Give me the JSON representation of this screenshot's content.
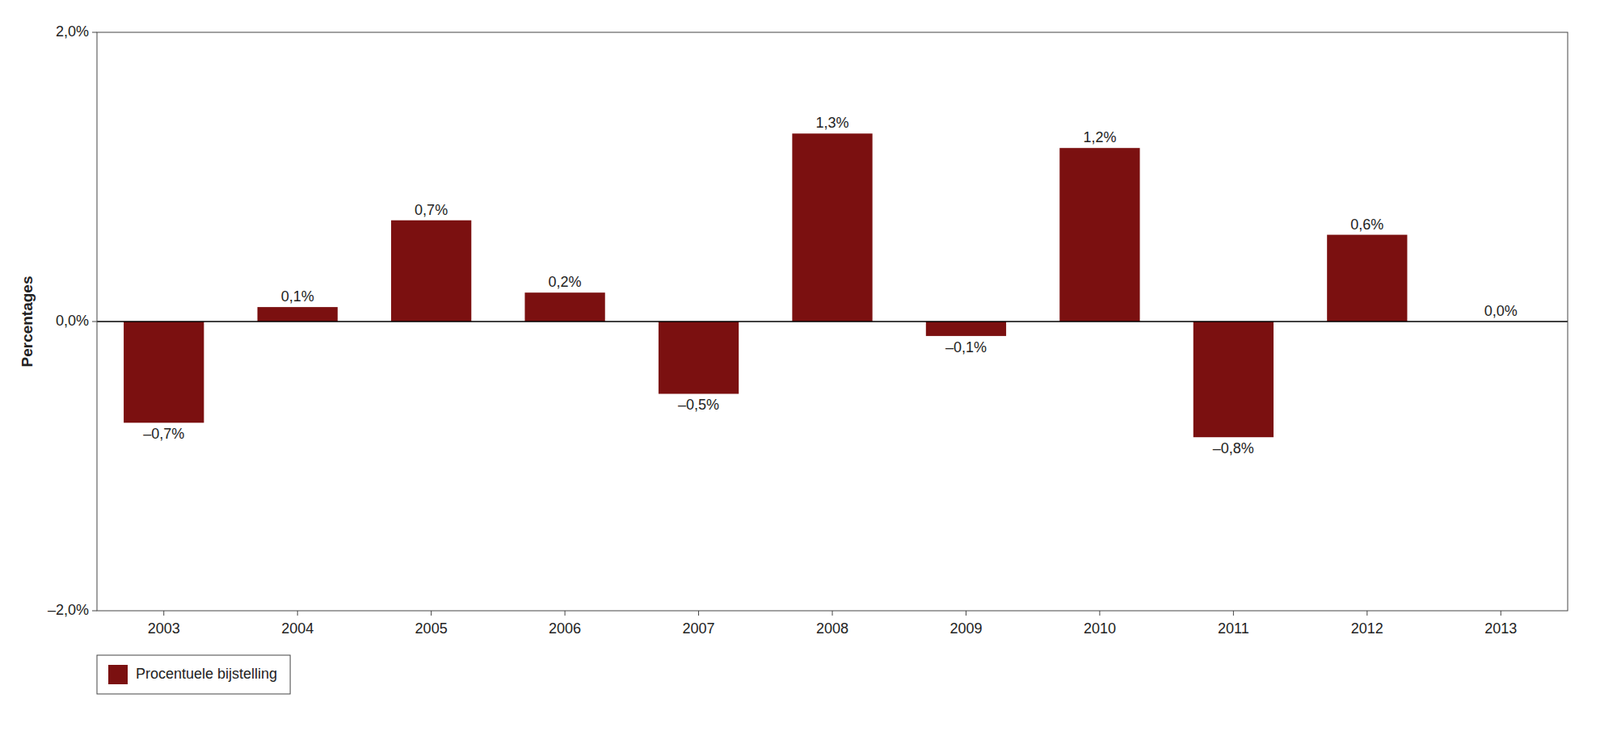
{
  "chart_data": {
    "type": "bar",
    "categories": [
      "2003",
      "2004",
      "2005",
      "2006",
      "2007",
      "2008",
      "2009",
      "2010",
      "2011",
      "2012",
      "2013"
    ],
    "series": [
      {
        "name": "Procentuele bijstelling",
        "color": "#7B1010",
        "values": [
          -0.7,
          0.1,
          0.7,
          0.2,
          -0.5,
          1.3,
          -0.1,
          1.2,
          -0.8,
          0.6,
          0.0
        ],
        "value_labels": [
          "–0,7%",
          "0,1%",
          "0,7%",
          "0,2%",
          "–0,5%",
          "1,3%",
          "–0,1%",
          "1,2%",
          "–0,8%",
          "0,6%",
          "0,0%"
        ]
      }
    ],
    "ylabel": "Percentages",
    "ylim": [
      -2.0,
      2.0
    ],
    "yticks": [
      {
        "value": -2.0,
        "label": "–2,0%"
      },
      {
        "value": 0.0,
        "label": "0,0%"
      },
      {
        "value": 2.0,
        "label": "2,0%"
      }
    ],
    "grid": false,
    "legend": "bottom-left",
    "data_labels": true
  }
}
